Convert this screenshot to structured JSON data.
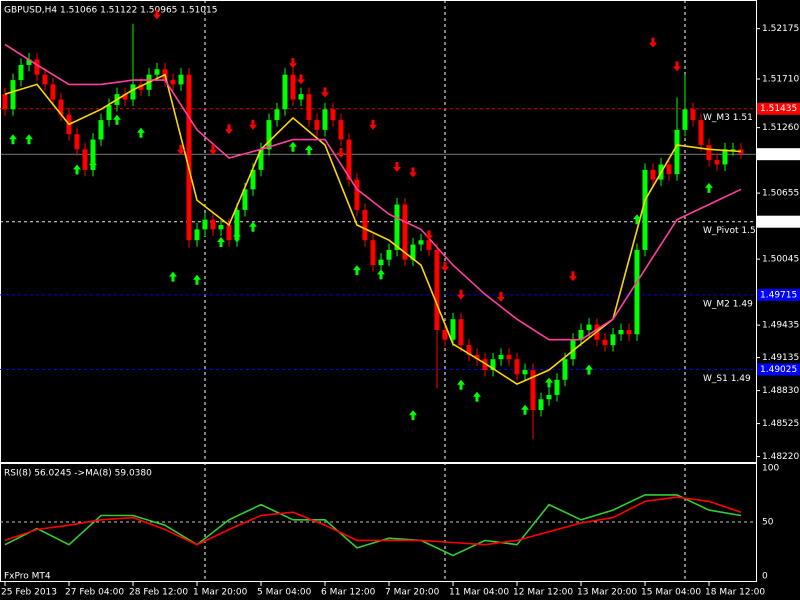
{
  "chart_data": {
    "type": "candlestick",
    "title": "GBPUSD,H4  1.51066 1.51122 1.50965 1.51015",
    "watermark": "FxPro MT4",
    "xlim": [
      -0.625,
      93.875
    ],
    "ylim": [
      1.4817,
      1.5244
    ],
    "yticks": [
      1.52175,
      {
        "value": 1.5171,
        "label": "1.51710"
      },
      {
        "value": 1.5126,
        "label": "1.51260"
      },
      1.50655,
      1.50045,
      1.49435,
      1.49135,
      {
        "value": 1.4883,
        "label": "1.48830"
      },
      1.48525,
      {
        "value": 1.4822,
        "label": "1.48220"
      }
    ],
    "xticks": [
      {
        "value": 0,
        "label": "25 Feb 2013"
      },
      {
        "value": 8,
        "label": "27 Feb 04:00"
      },
      {
        "value": 16,
        "label": "28 Feb 12:00"
      },
      {
        "value": 24,
        "label": "1 Mar 20:00"
      },
      {
        "value": 32,
        "label": "5 Mar 04:00"
      },
      {
        "value": 40,
        "label": "6 Mar 12:00"
      },
      {
        "value": 48,
        "label": "7 Mar 20:00"
      },
      {
        "value": 56,
        "label": "11 Mar 04:00"
      },
      {
        "value": 64,
        "label": "12 Mar 12:00"
      },
      {
        "value": 72,
        "label": "13 Mar 20:00"
      },
      {
        "value": 80,
        "label": "15 Mar 04:00"
      },
      {
        "value": 88,
        "label": "18 Mar 12:00"
      }
    ],
    "candles": {
      "up_color": "#00ff00",
      "down_color": "#ff0000",
      "open": [
        1.5157,
        1.5143,
        1.517,
        1.5184,
        1.5189,
        1.5175,
        1.5166,
        1.5152,
        1.5138,
        1.512,
        1.5106,
        1.5087,
        1.5115,
        1.5133,
        1.5147,
        1.5157,
        1.5152,
        1.5166,
        1.5161,
        1.5175,
        1.518,
        1.517,
        1.5166,
        1.5175,
        1.5022,
        1.5032,
        1.5041,
        1.5032,
        1.5036,
        1.5022,
        1.505,
        1.5069,
        1.5087,
        1.5106,
        1.5133,
        1.5143,
        1.5175,
        1.5152,
        1.5157,
        1.5133,
        1.5124,
        1.5143,
        1.5133,
        1.5115,
        1.5078,
        1.505,
        1.5022,
        1.4999,
        1.5004,
        1.5013,
        1.5055,
        1.5004,
        1.5018,
        1.5022,
        1.5013,
        1.4939,
        1.493,
        1.4949,
        1.4925,
        1.4916,
        1.4912,
        1.4902,
        1.4912,
        1.4916,
        1.4912,
        1.4898,
        1.4902,
        1.4865,
        1.4875,
        1.4879,
        1.4893,
        1.4912,
        1.493,
        1.4939,
        1.4944,
        1.493,
        1.4925,
        1.4935,
        1.4939,
        1.4935,
        1.5013,
        1.5087,
        1.5078,
        1.5092,
        1.5083,
        1.5124,
        1.5143,
        1.5133,
        1.511,
        1.5096,
        1.5092,
        1.5106,
        1.5106
      ],
      "high": [
        1.5163,
        1.5176,
        1.519,
        1.5195,
        1.5195,
        1.5181,
        1.5172,
        1.5158,
        1.5144,
        1.5126,
        1.5112,
        1.5121,
        1.5139,
        1.5153,
        1.5163,
        1.5163,
        1.5222,
        1.5172,
        1.5181,
        1.5186,
        1.5186,
        1.5176,
        1.5181,
        1.5181,
        1.5038,
        1.5047,
        1.5047,
        1.5042,
        1.5042,
        1.5056,
        1.5075,
        1.5093,
        1.5112,
        1.5139,
        1.5149,
        1.5181,
        1.5181,
        1.5163,
        1.5163,
        1.5139,
        1.5149,
        1.5149,
        1.5139,
        1.5121,
        1.5084,
        1.5056,
        1.5028,
        1.501,
        1.5019,
        1.5061,
        1.5061,
        1.5024,
        1.5028,
        1.5028,
        1.5019,
        1.4945,
        1.4955,
        1.4955,
        1.4931,
        1.4922,
        1.4918,
        1.4918,
        1.4922,
        1.4922,
        1.4918,
        1.4908,
        1.4908,
        1.4881,
        1.4885,
        1.4899,
        1.4918,
        1.4936,
        1.4945,
        1.495,
        1.495,
        1.4936,
        1.4941,
        1.4945,
        1.4945,
        1.5019,
        1.5093,
        1.5093,
        1.5098,
        1.5098,
        1.5154,
        1.5175,
        1.5149,
        1.5139,
        1.5116,
        1.5102,
        1.5112,
        1.5112,
        1.5112
      ],
      "low": [
        1.5137,
        1.5137,
        1.5164,
        1.5178,
        1.5169,
        1.516,
        1.5146,
        1.5132,
        1.5114,
        1.51,
        1.5081,
        1.5081,
        1.5109,
        1.5127,
        1.5141,
        1.5146,
        1.5146,
        1.5155,
        1.5155,
        1.5169,
        1.5164,
        1.516,
        1.516,
        1.5015,
        1.5016,
        1.5026,
        1.5026,
        1.5026,
        1.5016,
        1.5016,
        1.5044,
        1.5063,
        1.5081,
        1.51,
        1.5127,
        1.5137,
        1.5146,
        1.5146,
        1.5127,
        1.5118,
        1.5118,
        1.5127,
        1.5109,
        1.5072,
        1.5044,
        1.5016,
        1.4993,
        1.4993,
        1.4998,
        1.5007,
        1.4998,
        1.4998,
        1.5012,
        1.5007,
        1.4885,
        1.4924,
        1.4924,
        1.4919,
        1.491,
        1.4906,
        1.4896,
        1.4896,
        1.4906,
        1.4906,
        1.4892,
        1.4892,
        1.4838,
        1.4859,
        1.4869,
        1.4873,
        1.4887,
        1.4906,
        1.4924,
        1.4933,
        1.4924,
        1.4919,
        1.4919,
        1.4929,
        1.4929,
        1.4929,
        1.5007,
        1.5072,
        1.5072,
        1.5077,
        1.5077,
        1.5118,
        1.5127,
        1.5104,
        1.509,
        1.5086,
        1.5086,
        1.51,
        1.5097
      ],
      "close": [
        1.5143,
        1.517,
        1.5184,
        1.5189,
        1.5175,
        1.5166,
        1.5152,
        1.5138,
        1.512,
        1.5106,
        1.5087,
        1.5115,
        1.5133,
        1.5147,
        1.5157,
        1.5152,
        1.5166,
        1.5161,
        1.5175,
        1.518,
        1.517,
        1.5166,
        1.5175,
        1.5022,
        1.5032,
        1.5041,
        1.5032,
        1.5036,
        1.5022,
        1.505,
        1.5069,
        1.5087,
        1.5106,
        1.5133,
        1.5143,
        1.5175,
        1.5152,
        1.5157,
        1.5133,
        1.5124,
        1.5143,
        1.5133,
        1.5115,
        1.5078,
        1.505,
        1.5022,
        1.4999,
        1.5004,
        1.5013,
        1.5055,
        1.5004,
        1.5018,
        1.5022,
        1.5013,
        1.4939,
        1.493,
        1.4949,
        1.4925,
        1.4916,
        1.4912,
        1.4902,
        1.4912,
        1.4916,
        1.4912,
        1.4898,
        1.4902,
        1.4865,
        1.4875,
        1.4879,
        1.4893,
        1.4912,
        1.493,
        1.4939,
        1.4944,
        1.493,
        1.4925,
        1.4935,
        1.4939,
        1.4935,
        1.5013,
        1.5087,
        1.5078,
        1.5092,
        1.5083,
        1.5124,
        1.5143,
        1.5133,
        1.511,
        1.5096,
        1.5092,
        1.5106,
        1.5106,
        1.5102
      ]
    },
    "lines": [
      {
        "color": "#ffd700",
        "x": [
          0,
          4,
          8,
          12,
          16,
          20,
          24,
          28,
          32,
          36,
          40,
          44,
          48,
          52,
          56,
          60,
          64,
          68,
          72,
          76,
          80,
          84,
          88,
          92
        ],
        "values": [
          1.5157,
          1.5166,
          1.5129,
          1.5143,
          1.5161,
          1.5175,
          1.5059,
          1.5036,
          1.5106,
          1.5135,
          1.511,
          1.5036,
          1.5022,
          1.4999,
          1.4926,
          1.4908,
          1.4889,
          1.4902,
          1.4926,
          1.4949,
          1.5059,
          1.511,
          1.5106,
          1.5104
        ]
      },
      {
        "color": "#ff3fa0",
        "x": [
          0,
          4,
          8,
          12,
          16,
          20,
          24,
          28,
          32,
          36,
          40,
          44,
          48,
          52,
          56,
          60,
          64,
          68,
          72,
          76,
          80,
          84,
          88,
          92
        ],
        "values": [
          1.5203,
          1.5184,
          1.5166,
          1.5166,
          1.517,
          1.517,
          1.5124,
          1.5098,
          1.5106,
          1.5115,
          1.5115,
          1.5069,
          1.5046,
          1.5032,
          1.4999,
          1.4972,
          1.4949,
          1.493,
          1.493,
          1.4949,
          1.4995,
          1.5041,
          1.5055,
          1.5069
        ]
      }
    ],
    "arrows": {
      "up": {
        "color": "#00ff00",
        "x": [
          1,
          3,
          9,
          11,
          14,
          17,
          21,
          24,
          27,
          29,
          31,
          36,
          38,
          44,
          47,
          51,
          57,
          59,
          65,
          68,
          73,
          79,
          88
        ],
        "values": [
          1.512,
          1.512,
          1.5092,
          1.5096,
          1.5138,
          1.5126,
          1.4993,
          1.499,
          1.5025,
          1.503,
          1.5039,
          1.5113,
          1.511,
          1.4999,
          1.4995,
          1.4865,
          1.4893,
          1.4882,
          1.487,
          1.4895,
          1.4907,
          1.5046,
          1.5075
        ]
      },
      "down": {
        "color": "#ff0000",
        "x": [
          19,
          22,
          26,
          28,
          31,
          36,
          37,
          40,
          42,
          46,
          49,
          51,
          53,
          55,
          57,
          62,
          71,
          81,
          84
        ],
        "values": [
          1.5226,
          1.5101,
          1.5101,
          1.512,
          1.5124,
          1.5181,
          1.5166,
          1.5154,
          1.5098,
          1.5124,
          1.5085,
          1.508,
          1.5022,
          1.4993,
          1.4967,
          1.4965,
          1.4984,
          1.52,
          1.5178
        ]
      }
    },
    "levels": [
      {
        "label": "W_M3 1.51",
        "value": 1.51435,
        "color": "#ff0000"
      },
      {
        "label": "W_Pivot 1.5",
        "value": 1.50391,
        "color": "#ffffff"
      },
      {
        "label": "W_M2 1.49",
        "value": 1.49715,
        "color": "#0000ff"
      },
      {
        "label": "W_S1 1.49",
        "value": 1.49025,
        "color": "#0000ff"
      }
    ],
    "current": {
      "value": 1.51015,
      "color": "#c0c0c0"
    },
    "rsi": {
      "type": "line",
      "title": "RSI(8) 56.0245  ->MA(8) 59.0380",
      "ylim": [
        -5.5,
        104.5
      ],
      "yticks": [
        0,
        50,
        100
      ],
      "series": [
        {
          "color": "#32cd32",
          "x": [
            0,
            4,
            8,
            12,
            16,
            20,
            24,
            28,
            32,
            36,
            40,
            44,
            48,
            52,
            56,
            60,
            64,
            68,
            72,
            76,
            80,
            84,
            88,
            92
          ],
          "values": [
            29,
            44,
            29,
            56,
            56,
            47,
            29,
            52,
            66,
            52,
            52,
            26,
            35,
            33,
            19,
            33,
            29,
            66,
            52,
            61,
            75,
            75,
            61,
            56
          ]
        },
        {
          "color": "#ff0000",
          "x": [
            0,
            4,
            8,
            12,
            16,
            20,
            24,
            28,
            32,
            36,
            40,
            44,
            48,
            52,
            56,
            60,
            64,
            68,
            72,
            76,
            80,
            84,
            88,
            92
          ],
          "values": [
            33,
            43,
            47,
            52,
            54,
            43,
            29,
            43,
            56,
            59,
            47,
            33,
            33,
            33,
            31,
            29,
            33,
            41,
            49,
            54,
            69,
            73,
            69,
            59
          ]
        }
      ]
    }
  }
}
